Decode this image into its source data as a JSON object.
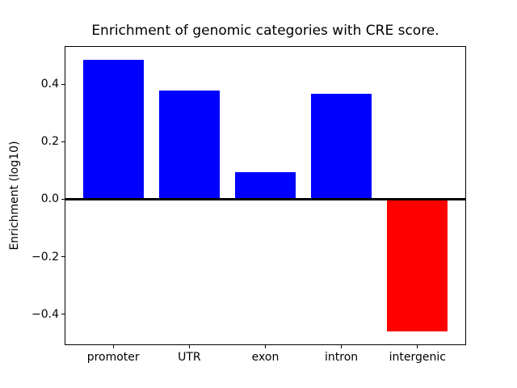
{
  "figure": {
    "background_color": "#ffffff",
    "axes_edge_color": "#000000"
  },
  "chart_data": {
    "type": "bar",
    "title": "Enrichment of genomic categories with CRE score.",
    "xlabel": "",
    "ylabel": "Enrichment (log10)",
    "categories": [
      "promoter",
      "UTR",
      "exon",
      "intron",
      "intergenic"
    ],
    "values": [
      0.486,
      0.379,
      0.095,
      0.367,
      -0.46
    ],
    "bar_colors": [
      "#0000ff",
      "#0000ff",
      "#0000ff",
      "#0000ff",
      "#ff0000"
    ],
    "positive_color": "#0000ff",
    "negative_color": "#ff0000",
    "ylim": [
      -0.508,
      0.533
    ],
    "xlim": [
      -0.64,
      4.64
    ],
    "yticks": [
      -0.4,
      -0.2,
      0.0,
      0.2,
      0.4
    ],
    "ytick_labels": [
      "−0.4",
      "−0.2",
      "0.0",
      "0.2",
      "0.4"
    ],
    "bar_width_fraction": 0.8,
    "zero_line": true,
    "grid": false,
    "legend": null
  }
}
